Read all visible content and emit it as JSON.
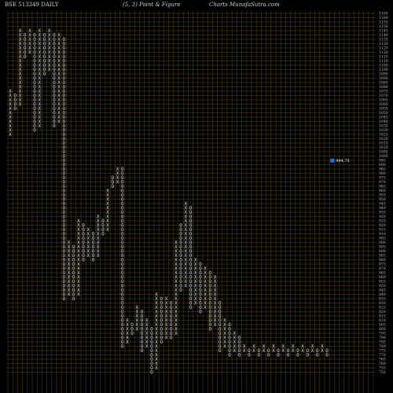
{
  "header": {
    "symbol": "BSE 513349 DAILY",
    "params": "(5, 3) Point & Figure",
    "source": "Charts MunafaSutra.com"
  },
  "colors": {
    "background": "#000000",
    "grid": "#6b5a2a",
    "mark": "#d8d8d8",
    "current_marker": "#1e6fd8"
  },
  "chart_data": {
    "type": "point-and-figure",
    "box_size": 5,
    "reversal": 3,
    "y_ticks": [
      1165,
      1160,
      1155,
      1150,
      1145,
      1140,
      1135,
      1130,
      1125,
      1120,
      1115,
      1110,
      1105,
      1100,
      1095,
      1090,
      1085,
      1080,
      1075,
      1070,
      1065,
      1060,
      1055,
      1050,
      1045,
      1040,
      1035,
      1030,
      1025,
      1020,
      1015,
      1010,
      1005,
      1000,
      995,
      990,
      985,
      980,
      975,
      970,
      965,
      960,
      955,
      950,
      945,
      940,
      935,
      930,
      925,
      920,
      915,
      910,
      905,
      900,
      895,
      890,
      885,
      880,
      875,
      870,
      865,
      860,
      855,
      850,
      845,
      840,
      835,
      830,
      825,
      820,
      815,
      810,
      805,
      800,
      795,
      790,
      785,
      780,
      775,
      770,
      765,
      760,
      755,
      750
    ],
    "current_price": 994.75,
    "current_price_label": "994.75",
    "columns": [
      {
        "t": "X",
        "lo": 1025,
        "hi": 1075
      },
      {
        "t": "O",
        "lo": 1055,
        "hi": 1070
      },
      {
        "t": "X",
        "lo": 1060,
        "hi": 1145
      },
      {
        "t": "O",
        "lo": 1115,
        "hi": 1140
      },
      {
        "t": "X",
        "lo": 1120,
        "hi": 1145
      },
      {
        "t": "O",
        "lo": 1030,
        "hi": 1140
      },
      {
        "t": "X",
        "lo": 1035,
        "hi": 1145
      },
      {
        "t": "O",
        "lo": 1095,
        "hi": 1140
      },
      {
        "t": "X",
        "lo": 1100,
        "hi": 1145
      },
      {
        "t": "O",
        "lo": 1035,
        "hi": 1140
      },
      {
        "t": "X",
        "lo": 1040,
        "hi": 1140
      },
      {
        "t": "O",
        "lo": 835,
        "hi": 1135
      },
      {
        "t": "X",
        "lo": 840,
        "hi": 900
      },
      {
        "t": "O",
        "lo": 835,
        "hi": 895
      },
      {
        "t": "X",
        "lo": 840,
        "hi": 925
      },
      {
        "t": "O",
        "lo": 880,
        "hi": 920
      },
      {
        "t": "X",
        "lo": 885,
        "hi": 915
      },
      {
        "t": "O",
        "lo": 880,
        "hi": 910
      },
      {
        "t": "X",
        "lo": 885,
        "hi": 930
      },
      {
        "t": "O",
        "lo": 910,
        "hi": 925
      },
      {
        "t": "X",
        "lo": 915,
        "hi": 960
      },
      {
        "t": "O",
        "lo": 965,
        "hi": 975
      },
      {
        "t": "X",
        "lo": 970,
        "hi": 985
      },
      {
        "t": "O",
        "lo": 780,
        "hi": 985
      },
      {
        "t": "X",
        "lo": 785,
        "hi": 810
      },
      {
        "t": "O",
        "lo": 795,
        "hi": 805
      },
      {
        "t": "X",
        "lo": 800,
        "hi": 825
      },
      {
        "t": "O",
        "lo": 775,
        "hi": 820
      },
      {
        "t": "X",
        "lo": 780,
        "hi": 810
      },
      {
        "t": "O",
        "lo": 750,
        "hi": 800
      },
      {
        "t": "X",
        "lo": 755,
        "hi": 840
      },
      {
        "t": "O",
        "lo": 785,
        "hi": 835
      },
      {
        "t": "X",
        "lo": 790,
        "hi": 835
      },
      {
        "t": "O",
        "lo": 790,
        "hi": 830
      },
      {
        "t": "X",
        "lo": 795,
        "hi": 900
      },
      {
        "t": "O",
        "lo": 845,
        "hi": 920
      },
      {
        "t": "X",
        "lo": 850,
        "hi": 945
      },
      {
        "t": "O",
        "lo": 825,
        "hi": 940
      },
      {
        "t": "X",
        "lo": 830,
        "hi": 880
      },
      {
        "t": "O",
        "lo": 820,
        "hi": 875
      },
      {
        "t": "X",
        "lo": 825,
        "hi": 870
      },
      {
        "t": "O",
        "lo": 800,
        "hi": 865
      },
      {
        "t": "X",
        "lo": 805,
        "hi": 860
      },
      {
        "t": "O",
        "lo": 775,
        "hi": 830
      },
      {
        "t": "X",
        "lo": 780,
        "hi": 810
      },
      {
        "t": "O",
        "lo": 770,
        "hi": 805
      },
      {
        "t": "X",
        "lo": 775,
        "hi": 795
      },
      {
        "t": "O",
        "lo": 770,
        "hi": 790
      },
      {
        "t": "X",
        "lo": 775,
        "hi": 780
      },
      {
        "t": "O",
        "lo": 770,
        "hi": 775
      },
      {
        "t": "X",
        "lo": 775,
        "hi": 780
      },
      {
        "t": "O",
        "lo": 770,
        "hi": 775
      },
      {
        "t": "X",
        "lo": 775,
        "hi": 780
      },
      {
        "t": "O",
        "lo": 770,
        "hi": 775
      },
      {
        "t": "X",
        "lo": 775,
        "hi": 780
      },
      {
        "t": "O",
        "lo": 770,
        "hi": 775
      },
      {
        "t": "X",
        "lo": 775,
        "hi": 780
      },
      {
        "t": "O",
        "lo": 770,
        "hi": 775
      },
      {
        "t": "X",
        "lo": 775,
        "hi": 780
      },
      {
        "t": "O",
        "lo": 770,
        "hi": 775
      },
      {
        "t": "X",
        "lo": 775,
        "hi": 780
      },
      {
        "t": "O",
        "lo": 770,
        "hi": 775
      },
      {
        "t": "X",
        "lo": 775,
        "hi": 780
      },
      {
        "t": "O",
        "lo": 770,
        "hi": 775
      },
      {
        "t": "X",
        "lo": 775,
        "hi": 780
      },
      {
        "t": "O",
        "lo": 770,
        "hi": 775
      }
    ]
  }
}
